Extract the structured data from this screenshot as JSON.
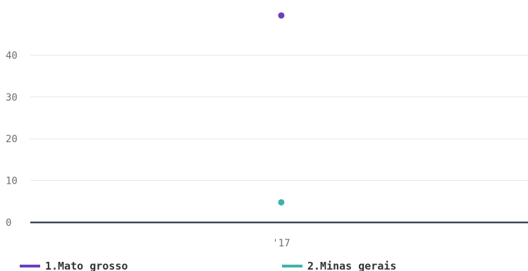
{
  "chart_data": {
    "type": "scatter",
    "categories": [
      "'17"
    ],
    "series": [
      {
        "name": "1.Mato grosso",
        "color": "#6b3fc0",
        "values": [
          49.5
        ]
      },
      {
        "name": "2.Minas gerais",
        "color": "#3db3ad",
        "values": [
          4.8
        ]
      }
    ],
    "y_ticks": [
      "0",
      "10",
      "20",
      "30",
      "40"
    ],
    "ylim": [
      0,
      50
    ],
    "grid": true,
    "legend_position": "bottom",
    "colors": {
      "grid": "#e6e6e6",
      "baseline": "#3f474f",
      "tick_text": "#6f6f6f",
      "legend_text": "#333333"
    }
  }
}
